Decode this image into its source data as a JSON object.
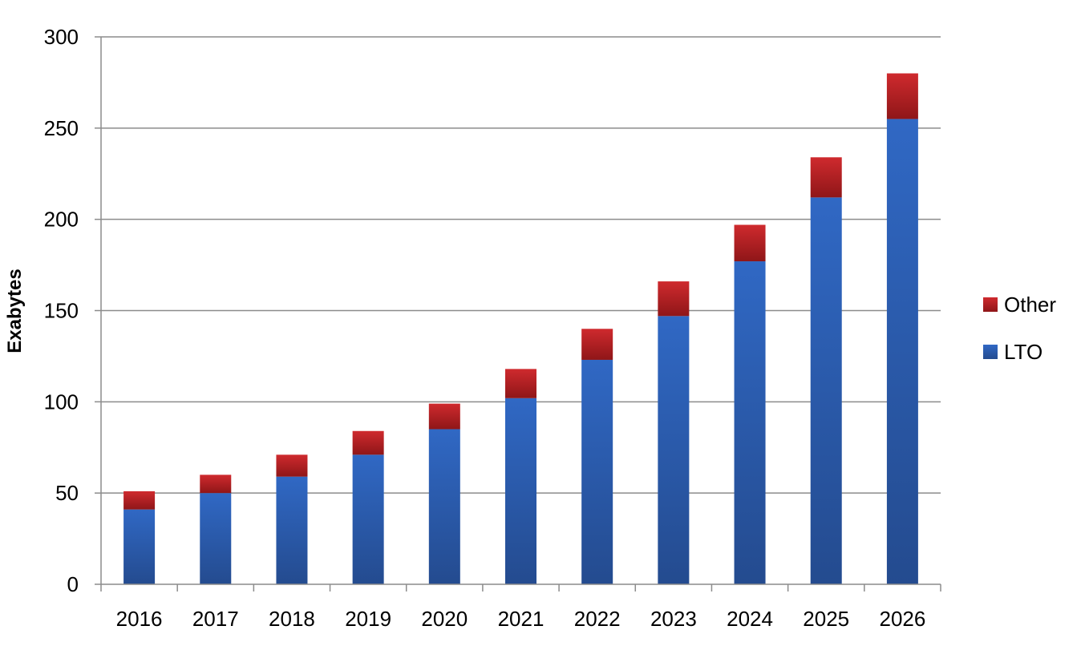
{
  "chart_data": {
    "type": "bar",
    "stacked": true,
    "title": "",
    "xlabel": "",
    "ylabel": "Exabytes",
    "categories": [
      "2016",
      "2017",
      "2018",
      "2019",
      "2020",
      "2021",
      "2022",
      "2023",
      "2024",
      "2025",
      "2026"
    ],
    "series": [
      {
        "name": "LTO",
        "color": "#2f64b8",
        "values": [
          41,
          50,
          59,
          71,
          85,
          102,
          123,
          147,
          177,
          212,
          255
        ]
      },
      {
        "name": "Other",
        "color": "#c02226",
        "values": [
          10,
          10,
          12,
          13,
          14,
          16,
          17,
          19,
          20,
          22,
          25
        ]
      }
    ],
    "ylim": [
      0,
      300
    ],
    "yticks": [
      0,
      50,
      100,
      150,
      200,
      250,
      300
    ],
    "grid": true,
    "legend_position": "right",
    "legend_order": [
      "Other",
      "LTO"
    ]
  }
}
